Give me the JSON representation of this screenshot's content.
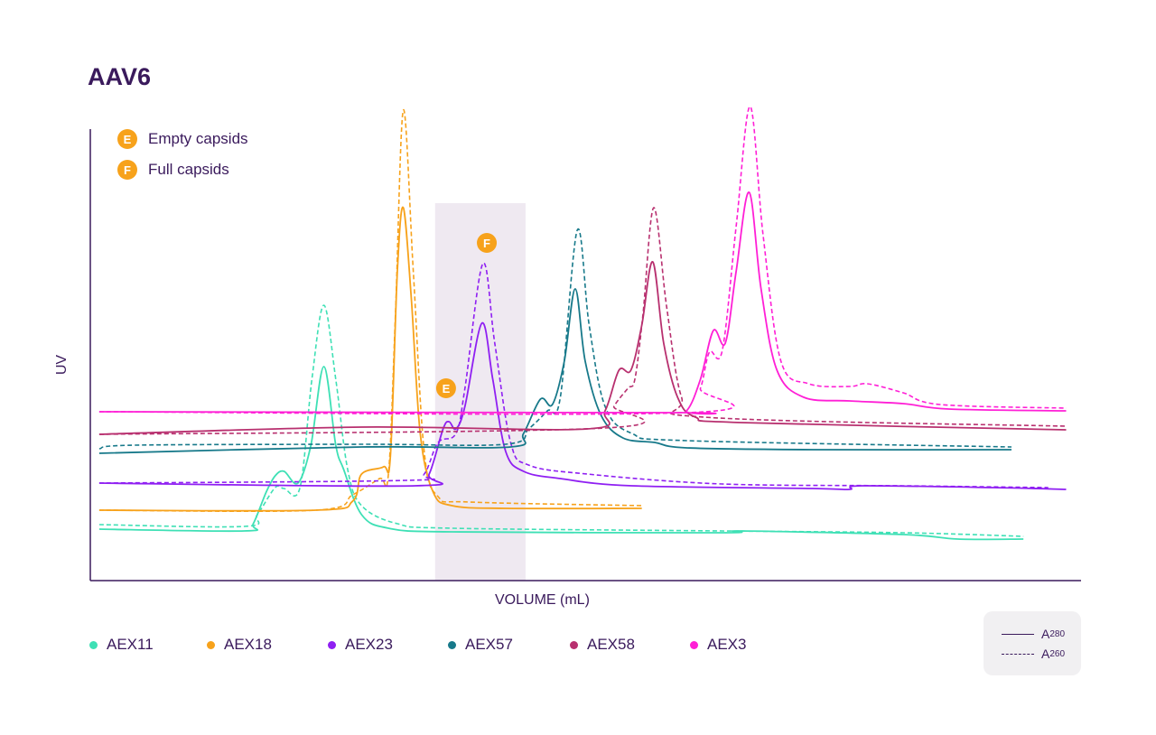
{
  "title": "AAV6",
  "annotations": {
    "empty": {
      "letter": "E",
      "label": "Empty capsids"
    },
    "full": {
      "letter": "F",
      "label": "Full capsids"
    }
  },
  "absorbance_legend": {
    "solid": {
      "base": "A",
      "sub": "280"
    },
    "dashed": {
      "base": "A",
      "sub": "260"
    }
  },
  "chart_data": {
    "type": "line",
    "title": "AAV6",
    "xlabel": "VOLUME (mL)",
    "ylabel": "UV",
    "xlim": [
      0,
      99.7
    ],
    "ylim": [
      0,
      110
    ],
    "grid": false,
    "ticks_shown": false,
    "legend_position": "bottom",
    "highlight_region": {
      "x": [
        34.7,
        43.8
      ],
      "y": [
        0,
        83.6
      ],
      "color": "#efe9f1"
    },
    "markers": [
      {
        "letter": "E",
        "x": 35.8,
        "y": 42.6
      },
      {
        "letter": "F",
        "x": 39.9,
        "y": 74.8
      }
    ],
    "accent": "#f7a21b",
    "series": [
      {
        "name": "AEX11",
        "color": "#3ee0b5",
        "A280": [
          [
            0.9,
            11.4
          ],
          [
            15.5,
            11
          ],
          [
            16.4,
            12.6
          ],
          [
            17.7,
            19.6
          ],
          [
            18.6,
            23.2
          ],
          [
            19.5,
            24.2
          ],
          [
            20.9,
            21.6
          ],
          [
            22.2,
            30
          ],
          [
            23.5,
            47.4
          ],
          [
            24.7,
            30
          ],
          [
            25.5,
            24.6
          ],
          [
            27.3,
            14.6
          ],
          [
            30,
            11.6
          ],
          [
            36.4,
            10.8
          ],
          [
            63.6,
            10.6
          ],
          [
            65.5,
            11
          ],
          [
            81.8,
            10.2
          ],
          [
            87.3,
            9.2
          ],
          [
            93.9,
            9.2
          ]
        ],
        "A260": [
          [
            0.9,
            12.4
          ],
          [
            15.5,
            12
          ],
          [
            16.8,
            14.6
          ],
          [
            18.6,
            20.6
          ],
          [
            19.5,
            20.4
          ],
          [
            21.1,
            20.6
          ],
          [
            22.3,
            44.6
          ],
          [
            23.5,
            61
          ],
          [
            24.7,
            44.6
          ],
          [
            25.9,
            24.6
          ],
          [
            27.3,
            16.6
          ],
          [
            30.9,
            12.6
          ],
          [
            36.4,
            11.6
          ],
          [
            63.6,
            11
          ],
          [
            81.8,
            10.6
          ],
          [
            93.9,
            9.8
          ]
        ]
      },
      {
        "name": "AEX18",
        "color": "#f7a21b",
        "A280": [
          [
            0.9,
            15.6
          ],
          [
            22.7,
            15.6
          ],
          [
            26.4,
            17.6
          ],
          [
            27.3,
            23.6
          ],
          [
            29.5,
            25.2
          ],
          [
            30.2,
            27.6
          ],
          [
            30.9,
            68.6
          ],
          [
            31.5,
            82.6
          ],
          [
            32.3,
            62.6
          ],
          [
            33.2,
            32.6
          ],
          [
            34.5,
            19.6
          ],
          [
            36.4,
            16.6
          ],
          [
            41.8,
            16
          ],
          [
            55.5,
            16
          ]
        ],
        "A260": [
          [
            0.9,
            15.6
          ],
          [
            22.7,
            15.6
          ],
          [
            26.4,
            19
          ],
          [
            29.1,
            22.6
          ],
          [
            30,
            23.6
          ],
          [
            30.7,
            58.6
          ],
          [
            31.5,
            104.2
          ],
          [
            32.5,
            68.6
          ],
          [
            33.6,
            28.6
          ],
          [
            35,
            18.6
          ],
          [
            38.2,
            17.4
          ],
          [
            55.5,
            16.6
          ]
        ]
      },
      {
        "name": "AEX23",
        "color": "#8f1ff2",
        "A280": [
          [
            0.9,
            21.6
          ],
          [
            32.7,
            21
          ],
          [
            34.1,
            23.6
          ],
          [
            35.5,
            33.6
          ],
          [
            36.1,
            35.2
          ],
          [
            36.8,
            33.6
          ],
          [
            37.7,
            38.6
          ],
          [
            39.4,
            57
          ],
          [
            40.5,
            44.6
          ],
          [
            41.8,
            28.6
          ],
          [
            43.6,
            24.2
          ],
          [
            47.3,
            22.6
          ],
          [
            54.5,
            21
          ],
          [
            72.7,
            20.4
          ],
          [
            76.4,
            20.2
          ],
          [
            77.7,
            21
          ],
          [
            90.9,
            20.6
          ],
          [
            98.2,
            20.2
          ]
        ],
        "A260": [
          [
            0.9,
            21.6
          ],
          [
            31.8,
            22.2
          ],
          [
            33.6,
            23.6
          ],
          [
            35,
            30.6
          ],
          [
            36.8,
            32.6
          ],
          [
            37.7,
            42.6
          ],
          [
            39.5,
            70.2
          ],
          [
            40.7,
            52.6
          ],
          [
            42.3,
            30.6
          ],
          [
            44.1,
            25.6
          ],
          [
            50,
            23.6
          ],
          [
            63.6,
            21.4
          ],
          [
            81.8,
            21
          ],
          [
            96.4,
            20.6
          ]
        ]
      },
      {
        "name": "AEX57",
        "color": "#17798a",
        "A280": [
          [
            0.9,
            28.2
          ],
          [
            27.3,
            29.6
          ],
          [
            42.3,
            29.6
          ],
          [
            43.6,
            32.6
          ],
          [
            45.3,
            40.2
          ],
          [
            46.5,
            39
          ],
          [
            47.7,
            48.6
          ],
          [
            48.8,
            64.6
          ],
          [
            49.8,
            48.6
          ],
          [
            51.4,
            36.6
          ],
          [
            53.6,
            31.6
          ],
          [
            56.8,
            30.6
          ],
          [
            60,
            29.4
          ],
          [
            72.7,
            29
          ],
          [
            92.7,
            29
          ]
        ],
        "A260": [
          [
            0.9,
            29.2
          ],
          [
            4.5,
            30
          ],
          [
            27.3,
            30.2
          ],
          [
            41.8,
            30.2
          ],
          [
            44.1,
            33.6
          ],
          [
            46,
            37.6
          ],
          [
            47.3,
            40.6
          ],
          [
            49,
            77.6
          ],
          [
            50.2,
            56.6
          ],
          [
            51.8,
            38.6
          ],
          [
            54.5,
            32.6
          ],
          [
            60,
            31
          ],
          [
            92.7,
            29.6
          ]
        ]
      },
      {
        "name": "AEX58",
        "color": "#b8306f",
        "A280": [
          [
            0.9,
            32.4
          ],
          [
            27.3,
            34
          ],
          [
            50,
            33.6
          ],
          [
            51.8,
            37.6
          ],
          [
            53.2,
            46.6
          ],
          [
            54.4,
            46.6
          ],
          [
            55.5,
            56.6
          ],
          [
            56.6,
            70.6
          ],
          [
            57.7,
            52.6
          ],
          [
            59.1,
            40.6
          ],
          [
            60.9,
            36.2
          ],
          [
            65.5,
            35
          ],
          [
            98.2,
            33.4
          ]
        ],
        "A260": [
          [
            0.9,
            32.4
          ],
          [
            51.8,
            33.8
          ],
          [
            52.7,
            38.6
          ],
          [
            54.1,
            42.6
          ],
          [
            54.8,
            44.6
          ],
          [
            55.6,
            58.6
          ],
          [
            56.7,
            82.6
          ],
          [
            58,
            60.6
          ],
          [
            59.5,
            40.6
          ],
          [
            61.8,
            36.2
          ],
          [
            98.2,
            34.2
          ]
        ]
      },
      {
        "name": "AEX3",
        "color": "#ff1fd6",
        "A280": [
          [
            0.9,
            37.4
          ],
          [
            58.2,
            37.2
          ],
          [
            60,
            37.6
          ],
          [
            61.4,
            44.6
          ],
          [
            62.7,
            55.4
          ],
          [
            63.9,
            52.6
          ],
          [
            65,
            68.6
          ],
          [
            66.3,
            86
          ],
          [
            67.5,
            64.6
          ],
          [
            69.1,
            46.6
          ],
          [
            71.8,
            40.6
          ],
          [
            76.4,
            39.8
          ],
          [
            81.8,
            39.2
          ],
          [
            86.4,
            38
          ],
          [
            98.2,
            37.6
          ]
        ],
        "A260": [
          [
            0.9,
            37.4
          ],
          [
            60,
            37.2
          ],
          [
            61.4,
            42.6
          ],
          [
            62.3,
            50.6
          ],
          [
            63.6,
            51
          ],
          [
            65,
            78.6
          ],
          [
            66.4,
            105
          ],
          [
            67.7,
            76.6
          ],
          [
            69.5,
            48.6
          ],
          [
            72.3,
            43.6
          ],
          [
            76.4,
            43
          ],
          [
            78.2,
            43.6
          ],
          [
            81.8,
            41.6
          ],
          [
            85.5,
            39
          ],
          [
            98.2,
            38.2
          ]
        ]
      }
    ]
  }
}
